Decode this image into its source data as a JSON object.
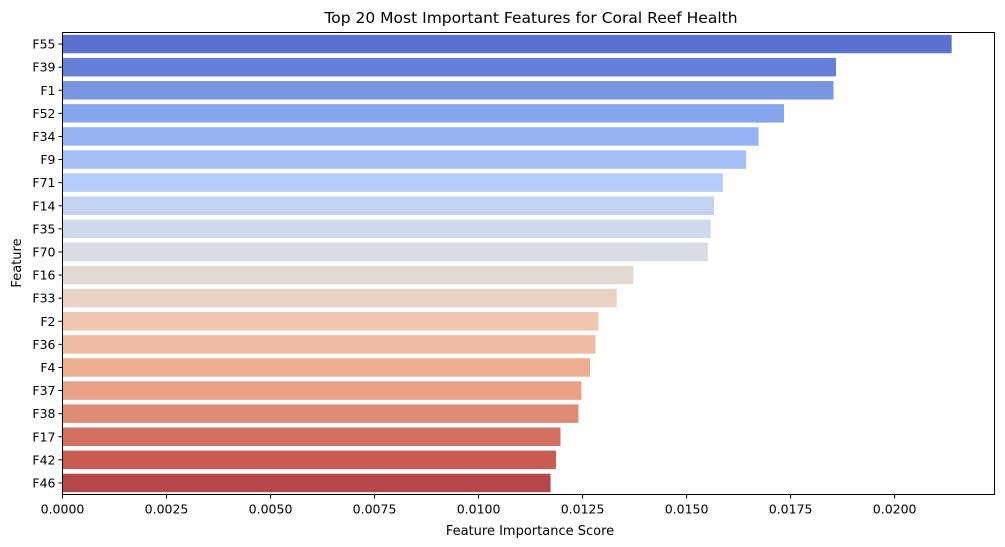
{
  "chart_data": {
    "type": "bar",
    "orientation": "horizontal",
    "title": "Top 20 Most Important Features for Coral Reef Health",
    "xlabel": "Feature Importance Score",
    "ylabel": "Feature",
    "xlim": [
      0,
      0.0224
    ],
    "xticks": [
      0,
      0.0025,
      0.005,
      0.0075,
      0.01,
      0.0125,
      0.015,
      0.0175,
      0.02
    ],
    "xtick_labels": [
      "0.0000",
      "0.0025",
      "0.0050",
      "0.0075",
      "0.0100",
      "0.0125",
      "0.0150",
      "0.0175",
      "0.0200"
    ],
    "categories": [
      "F55",
      "F39",
      "F1",
      "F52",
      "F34",
      "F9",
      "F71",
      "F14",
      "F35",
      "F70",
      "F16",
      "F33",
      "F2",
      "F36",
      "F4",
      "F37",
      "F38",
      "F17",
      "F42",
      "F46"
    ],
    "values": [
      0.02137,
      0.01859,
      0.01853,
      0.01734,
      0.01673,
      0.01643,
      0.01587,
      0.01566,
      0.01558,
      0.01551,
      0.01372,
      0.01332,
      0.01288,
      0.01281,
      0.01268,
      0.01247,
      0.0124,
      0.01197,
      0.01186,
      0.01173
    ],
    "colors": [
      "#5b71cd",
      "#6480da",
      "#7895e0",
      "#84a6ef",
      "#96b2f4",
      "#a5c0f8",
      "#b5cdfb",
      "#c3d2f0",
      "#cfd9eb",
      "#d8dce3",
      "#e2d9d2",
      "#e8d2c4",
      "#f0c6b0",
      "#efbca1",
      "#edaf90",
      "#e9a084",
      "#de8b73",
      "#d3705f",
      "#c95b52",
      "#b5474b"
    ],
    "grid": false,
    "legend": "none"
  }
}
